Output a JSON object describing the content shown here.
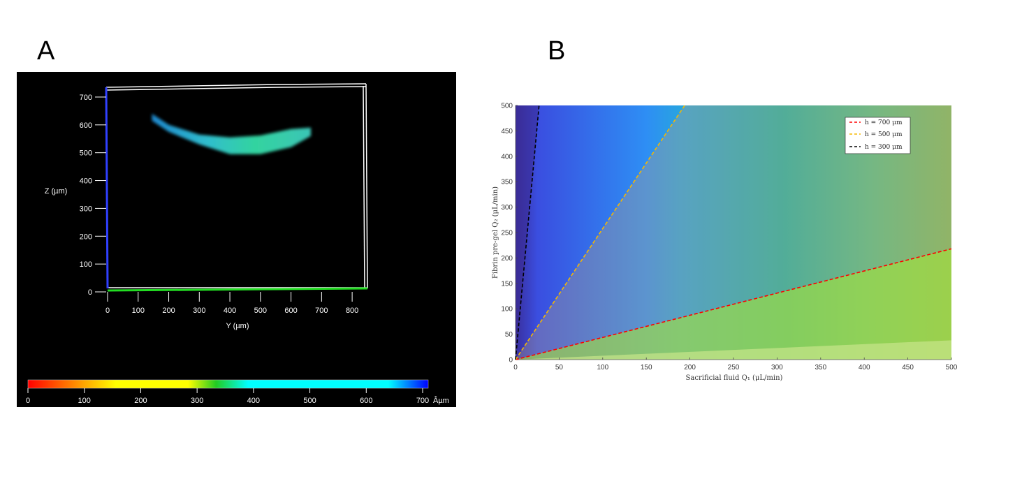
{
  "panels": {
    "a": "A",
    "b": "B"
  },
  "chart_data": [
    {
      "type": "scatter",
      "panel": "A",
      "xlabel": "Y (µm)",
      "ylabel": "Z (µm)",
      "xlim": [
        0,
        850
      ],
      "ylim": [
        0,
        720
      ],
      "x_ticks": [
        0,
        100,
        200,
        300,
        400,
        500,
        600,
        700,
        800
      ],
      "y_ticks": [
        0,
        100,
        200,
        300,
        400,
        500,
        600,
        700
      ],
      "structure_upper_edge": [
        [
          145,
          640
        ],
        [
          200,
          600
        ],
        [
          300,
          565
        ],
        [
          400,
          555
        ],
        [
          500,
          562
        ],
        [
          600,
          585
        ],
        [
          665,
          590
        ]
      ],
      "structure_lower_edge": [
        [
          145,
          615
        ],
        [
          200,
          575
        ],
        [
          300,
          530
        ],
        [
          400,
          495
        ],
        [
          500,
          495
        ],
        [
          600,
          520
        ],
        [
          665,
          560
        ]
      ],
      "colorbar": {
        "ticks": [
          0,
          100,
          200,
          300,
          400,
          500,
          600,
          700
        ],
        "unit": "Âµm",
        "colors": [
          "#ff0000",
          "#ffa500",
          "#ffff00",
          "#ffff00",
          "#22cc22",
          "#00ffff",
          "#00ffff",
          "#0000ff"
        ]
      }
    },
    {
      "type": "line",
      "panel": "B",
      "xlabel": "Sacrificial fluid Q₁ (μL/min)",
      "ylabel": "Fibrin pre-gel Q₂ (μL/min)",
      "xlim": [
        0,
        500
      ],
      "ylim": [
        0,
        500
      ],
      "x_ticks": [
        0,
        50,
        100,
        150,
        200,
        250,
        300,
        350,
        400,
        450,
        500
      ],
      "y_ticks": [
        0,
        50,
        100,
        150,
        200,
        250,
        300,
        350,
        400,
        450,
        500
      ],
      "series": [
        {
          "name": "h = 700 μm",
          "color": "#ff0000",
          "x": [
            0,
            500
          ],
          "y": [
            0,
            218
          ]
        },
        {
          "name": "h = 500 μm",
          "color": "#f5b800",
          "x": [
            0,
            194
          ],
          "y": [
            0,
            500
          ]
        },
        {
          "name": "h = 300 μm",
          "color": "#000000",
          "x": [
            0,
            27
          ],
          "y": [
            0,
            500
          ]
        }
      ],
      "legend": "top-right"
    }
  ]
}
